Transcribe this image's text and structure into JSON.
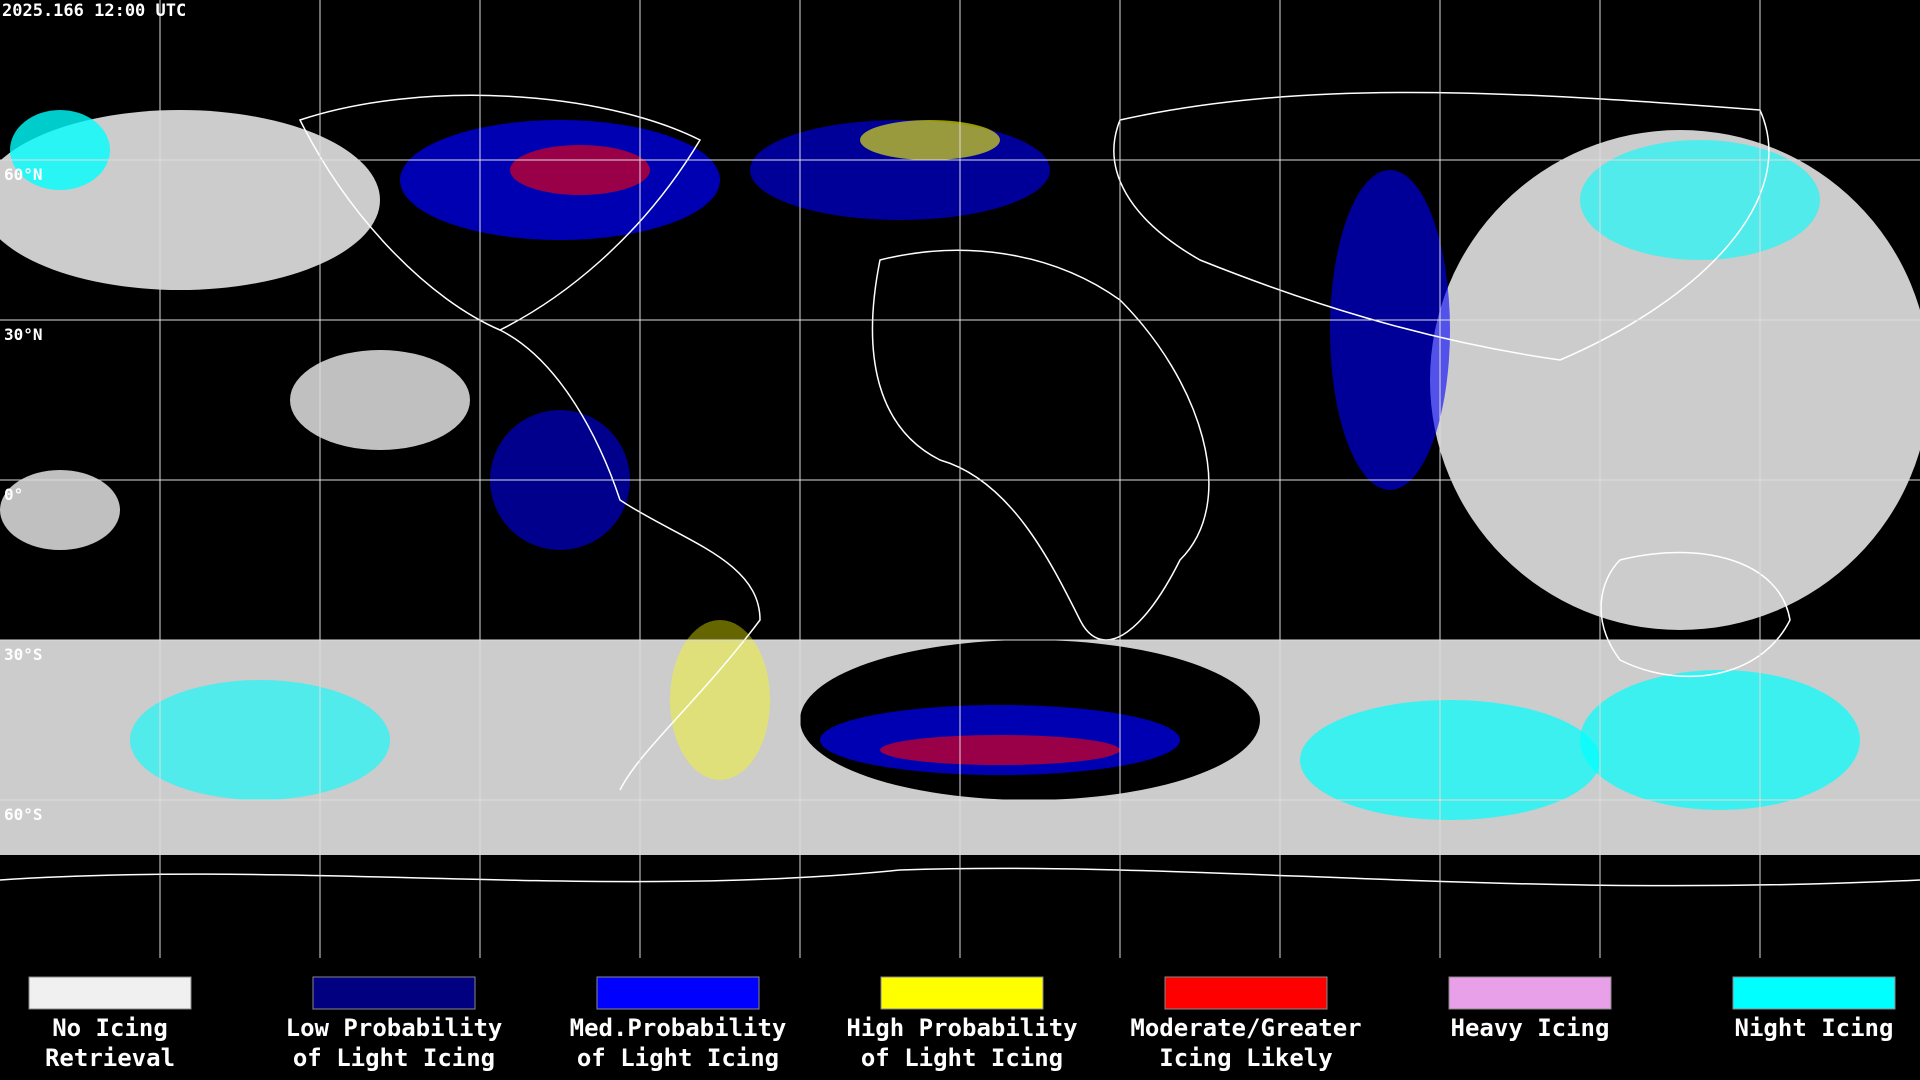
{
  "header": {
    "timestamp": "2025.166 12:00 UTC"
  },
  "map": {
    "latitude_labels": [
      "60°N",
      "30°N",
      "0°",
      "30°S",
      "60°S"
    ]
  },
  "legend": [
    {
      "lines": [
        "No Icing",
        "Retrieval"
      ],
      "color": "#f0f0f0"
    },
    {
      "lines": [
        "Low Probability",
        "of Light Icing"
      ],
      "color": "#000080"
    },
    {
      "lines": [
        "Med.Probability",
        "of Light Icing"
      ],
      "color": "#0000ff"
    },
    {
      "lines": [
        "High Probability",
        "of Light Icing"
      ],
      "color": "#ffff00"
    },
    {
      "lines": [
        "Moderate/Greater",
        "Icing Likely"
      ],
      "color": "#ff0000"
    },
    {
      "lines": [
        "Heavy Icing"
      ],
      "color": "#e8a0e8"
    },
    {
      "lines": [
        "Night Icing"
      ],
      "color": "#00ffff"
    }
  ]
}
